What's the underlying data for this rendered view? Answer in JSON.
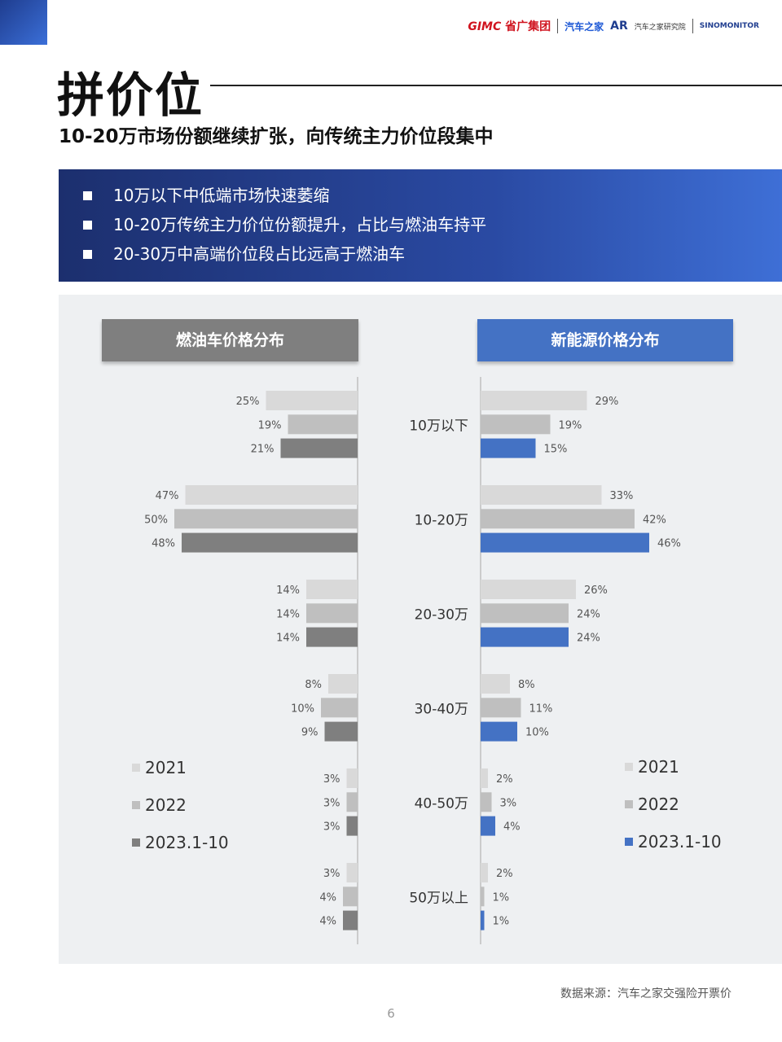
{
  "header": {
    "logos": {
      "gimc": "GIMC",
      "gimc_cn": "省广集团",
      "qczj": "汽车之家",
      "ar": "AR",
      "ar_text": "汽车之家研究院",
      "sino": "SINOMONITOR"
    }
  },
  "title": "拼价位",
  "subtitle": "10-20万市场份额继续扩张，向传统主力价位段集中",
  "bullets": [
    "10万以下中低端市场快速萎缩",
    "10-20万传统主力价位份额提升，占比与燃油车持平",
    "20-30万中高端价位段占比远高于燃油车"
  ],
  "chart_data": [
    {
      "type": "bar",
      "orientation": "horizontal",
      "title": "燃油车价格分布",
      "categories": [
        "10万以下",
        "10-20万",
        "20-30万",
        "30-40万",
        "40-50万",
        "50万以上"
      ],
      "series": [
        {
          "name": "2021",
          "color": "#d9d9d9",
          "values": [
            25,
            47,
            14,
            8,
            3,
            3
          ]
        },
        {
          "name": "2022",
          "color": "#bfbfbf",
          "values": [
            19,
            50,
            14,
            10,
            3,
            4
          ]
        },
        {
          "name": "2023.1-10",
          "color": "#7f7f7f",
          "values": [
            21,
            48,
            14,
            9,
            3,
            4
          ]
        }
      ],
      "unit": "%",
      "direction": "right-to-left"
    },
    {
      "type": "bar",
      "orientation": "horizontal",
      "title": "新能源价格分布",
      "categories": [
        "10万以下",
        "10-20万",
        "20-30万",
        "30-40万",
        "40-50万",
        "50万以上"
      ],
      "series": [
        {
          "name": "2021",
          "color": "#d9d9d9",
          "values": [
            29,
            33,
            26,
            8,
            2,
            2
          ]
        },
        {
          "name": "2022",
          "color": "#bfbfbf",
          "values": [
            19,
            42,
            24,
            11,
            3,
            1
          ]
        },
        {
          "name": "2023.1-10",
          "color": "#4472c4",
          "values": [
            15,
            46,
            24,
            10,
            4,
            1
          ]
        }
      ],
      "unit": "%",
      "direction": "left-to-right"
    }
  ],
  "legend_left": [
    "2021",
    "2022",
    "2023.1-10"
  ],
  "legend_right": [
    "2021",
    "2022",
    "2023.1-10"
  ],
  "source": "数据来源：汽车之家交强险开票价",
  "page_number": "6"
}
